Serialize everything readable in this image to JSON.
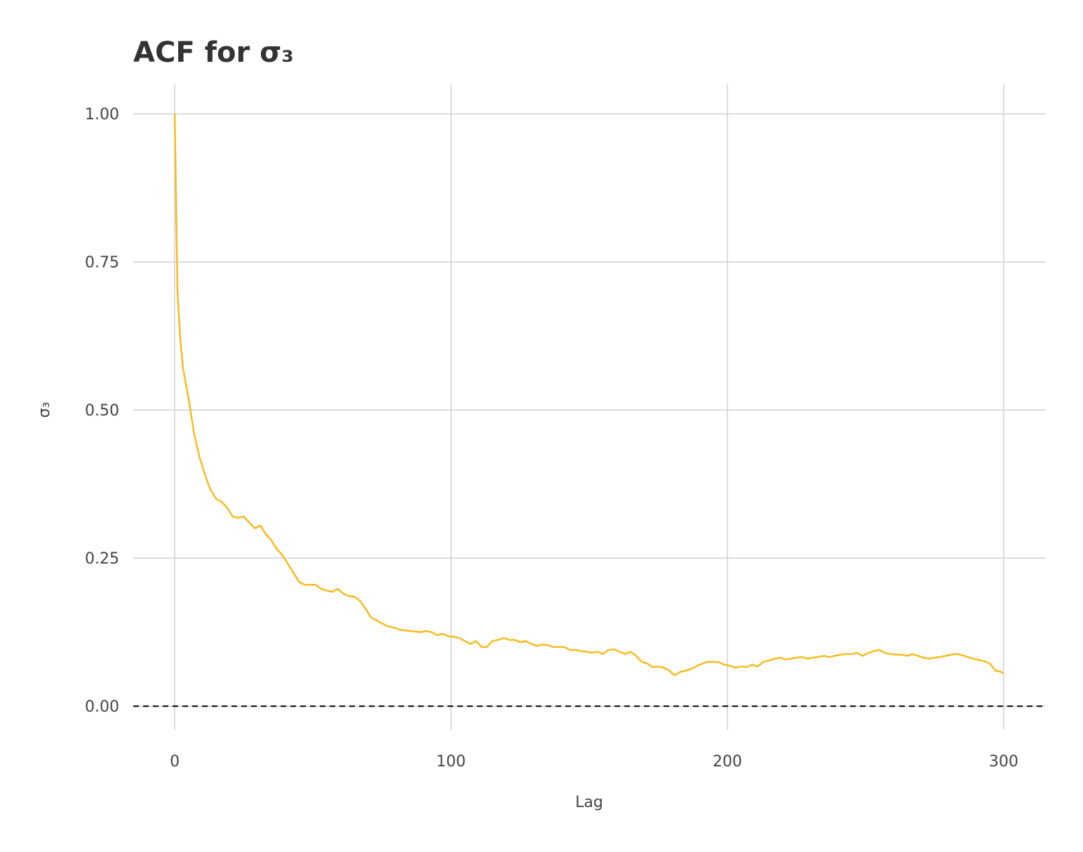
{
  "chart_data": {
    "type": "line",
    "title": "ACF for σ₃",
    "x_label": "Lag",
    "y_label": "σ₃",
    "x": [
      0,
      1,
      2,
      3,
      5,
      7,
      9,
      11,
      13,
      15,
      17,
      19,
      21,
      23,
      25,
      27,
      29,
      31,
      33,
      35,
      37,
      39,
      41,
      43,
      45,
      47,
      49,
      51,
      53,
      55,
      57,
      59,
      61,
      63,
      65,
      67,
      69,
      71,
      73,
      75,
      77,
      79,
      81,
      83,
      85,
      87,
      89,
      91,
      93,
      95,
      97,
      99,
      101,
      103,
      105,
      107,
      109,
      111,
      113,
      115,
      117,
      119,
      121,
      123,
      125,
      127,
      129,
      131,
      133,
      135,
      137,
      139,
      141,
      143,
      145,
      147,
      149,
      151,
      153,
      155,
      157,
      159,
      161,
      163,
      165,
      167,
      169,
      171,
      173,
      175,
      177,
      179,
      181,
      183,
      185,
      187,
      189,
      191,
      193,
      195,
      197,
      199,
      201,
      203,
      205,
      207,
      209,
      211,
      213,
      215,
      217,
      219,
      221,
      223,
      225,
      227,
      229,
      231,
      233,
      235,
      237,
      239,
      241,
      243,
      245,
      247,
      249,
      251,
      253,
      255,
      257,
      259,
      261,
      263,
      265,
      267,
      269,
      271,
      273,
      275,
      277,
      279,
      281,
      283,
      285,
      287,
      289,
      291,
      293,
      295,
      297,
      299,
      300
    ],
    "series": [
      {
        "name": "σ₃",
        "color": "#f8bb1e",
        "values": [
          1.0,
          0.7,
          0.62,
          0.57,
          0.52,
          0.46,
          0.42,
          0.39,
          0.365,
          0.35,
          0.345,
          0.335,
          0.32,
          0.318,
          0.32,
          0.31,
          0.3,
          0.305,
          0.29,
          0.28,
          0.265,
          0.255,
          0.24,
          0.225,
          0.21,
          0.205,
          0.205,
          0.205,
          0.198,
          0.195,
          0.193,
          0.198,
          0.19,
          0.186,
          0.185,
          0.178,
          0.165,
          0.15,
          0.145,
          0.14,
          0.135,
          0.133,
          0.13,
          0.128,
          0.127,
          0.126,
          0.125,
          0.127,
          0.125,
          0.12,
          0.122,
          0.118,
          0.117,
          0.115,
          0.11,
          0.105,
          0.11,
          0.1,
          0.1,
          0.11,
          0.112,
          0.115,
          0.112,
          0.112,
          0.108,
          0.11,
          0.105,
          0.102,
          0.104,
          0.103,
          0.1,
          0.1,
          0.1,
          0.095,
          0.095,
          0.093,
          0.092,
          0.09,
          0.092,
          0.088,
          0.095,
          0.096,
          0.092,
          0.088,
          0.092,
          0.085,
          0.075,
          0.072,
          0.066,
          0.067,
          0.065,
          0.06,
          0.052,
          0.058,
          0.06,
          0.063,
          0.068,
          0.072,
          0.075,
          0.075,
          0.074,
          0.07,
          0.068,
          0.065,
          0.067,
          0.066,
          0.07,
          0.067,
          0.075,
          0.077,
          0.08,
          0.082,
          0.079,
          0.08,
          0.082,
          0.083,
          0.08,
          0.082,
          0.083,
          0.085,
          0.083,
          0.085,
          0.087,
          0.088,
          0.088,
          0.09,
          0.085,
          0.09,
          0.093,
          0.095,
          0.09,
          0.088,
          0.087,
          0.087,
          0.085,
          0.088,
          0.085,
          0.082,
          0.08,
          0.082,
          0.083,
          0.085,
          0.087,
          0.088,
          0.086,
          0.083,
          0.08,
          0.078,
          0.076,
          0.072,
          0.06,
          0.058,
          0.055
        ]
      }
    ],
    "xlim": [
      -15,
      315
    ],
    "ylim": [
      -0.04,
      1.05
    ],
    "xticks": [
      0,
      100,
      200,
      300
    ],
    "yticks": [
      {
        "value": 0,
        "label": "0.00"
      },
      {
        "value": 0.25,
        "label": "0.25"
      },
      {
        "value": 0.5,
        "label": "0.50"
      },
      {
        "value": 0.75,
        "label": "0.75"
      },
      {
        "value": 1,
        "label": "1.00"
      }
    ],
    "hline": 0,
    "grid": true
  }
}
